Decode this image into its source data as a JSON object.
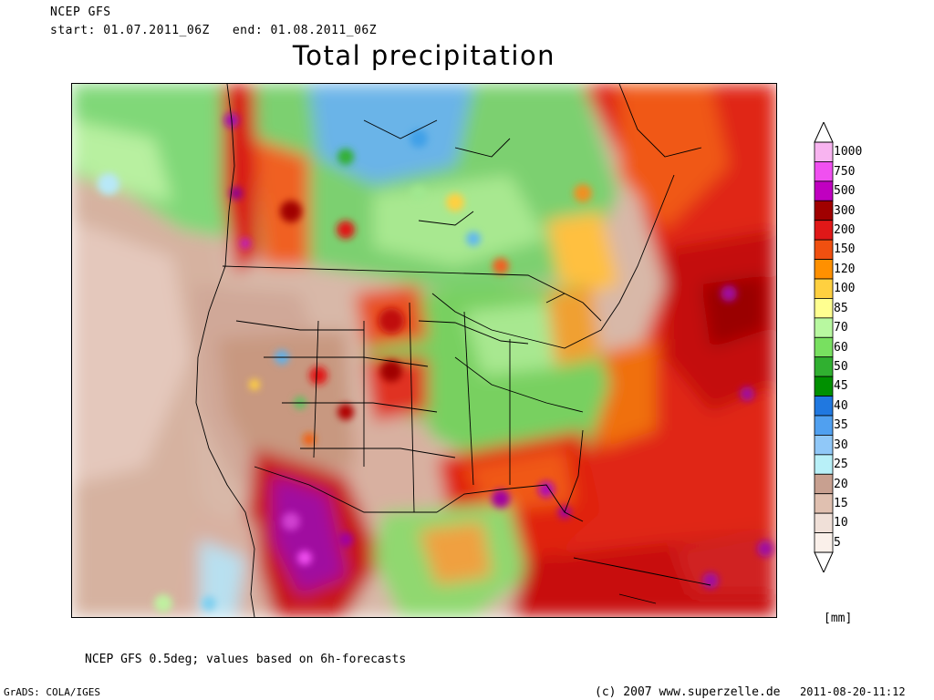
{
  "header": {
    "line1": "NCEP GFS",
    "line2": "start: 01.07.2011_06Z   end: 01.08.2011_06Z",
    "title": "Total precipitation"
  },
  "legend": {
    "unit": "[mm]",
    "levels": [
      {
        "label": "1000",
        "color": "#f8b4f0"
      },
      {
        "label": "750",
        "color": "#f050f0"
      },
      {
        "label": "500",
        "color": "#c000c0"
      },
      {
        "label": "300",
        "color": "#a00000"
      },
      {
        "label": "200",
        "color": "#e01818"
      },
      {
        "label": "150",
        "color": "#f05010"
      },
      {
        "label": "120",
        "color": "#ff9000"
      },
      {
        "label": "100",
        "color": "#ffd040"
      },
      {
        "label": "85",
        "color": "#ffff90"
      },
      {
        "label": "70",
        "color": "#b8f8a0"
      },
      {
        "label": "60",
        "color": "#78e060"
      },
      {
        "label": "50",
        "color": "#30b030"
      },
      {
        "label": "45",
        "color": "#009000"
      },
      {
        "label": "40",
        "color": "#2078e0"
      },
      {
        "label": "35",
        "color": "#50a0f0"
      },
      {
        "label": "30",
        "color": "#90c8f8"
      },
      {
        "label": "25",
        "color": "#b8f0f8"
      },
      {
        "label": "20",
        "color": "#c8a090"
      },
      {
        "label": "15",
        "color": "#e0c0b0"
      },
      {
        "label": "10",
        "color": "#f0e0d8"
      },
      {
        "label": "5",
        "color": "#faf0ea"
      }
    ]
  },
  "footnote": "NCEP GFS 0.5deg; values based on 6h-forecasts",
  "credits": {
    "grads": "GrADS: COLA/IGES",
    "copyright": "(c) 2007 www.superzelle.de",
    "timestamp": "2011-08-20-11:12"
  }
}
